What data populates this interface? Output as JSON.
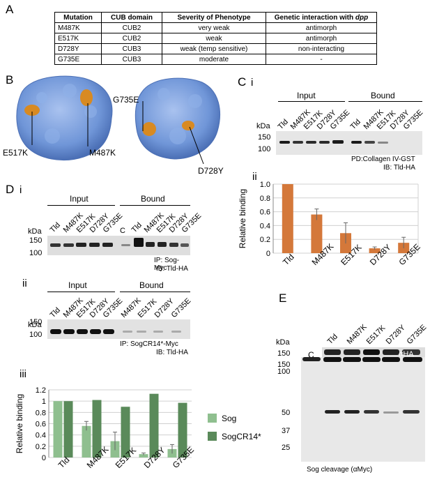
{
  "panels": {
    "A": "A",
    "B": "B",
    "C": "C",
    "C_i": "i",
    "C_ii": "ii",
    "D": "D",
    "D_i": "i",
    "D_ii": "ii",
    "D_iii": "iii",
    "E": "E"
  },
  "table": {
    "headers": [
      "Mutation",
      "CUB domain",
      "Severity of Phenotype",
      "Genetic interaction with "
    ],
    "header_italic": "dpp",
    "rows": [
      [
        "M487K",
        "CUB2",
        "very weak",
        "antimorph"
      ],
      [
        "E517K",
        "CUB2",
        "weak",
        "antimorph"
      ],
      [
        "D728Y",
        "CUB3",
        "weak (temp sensitive)",
        "non-interacting"
      ],
      [
        "G735E",
        "CUB3",
        "moderate",
        "-"
      ]
    ]
  },
  "structure_labels": {
    "e517k": "E517K",
    "m487k": "M487K",
    "g735e": "G735E",
    "d728y": "D728Y"
  },
  "blots": {
    "Ci": {
      "input": "Input",
      "bound": "Bound",
      "lanes": [
        "Tld",
        "M487K",
        "E517K",
        "D728Y",
        "G735E",
        "Tld",
        "M487K",
        "E517K",
        "D728Y",
        "G735E"
      ],
      "kda": "kDa",
      "markers": [
        "150",
        "100"
      ],
      "caption1": "PD:Collagen IV-GST",
      "caption2": "IB: Tld-HA"
    },
    "Di": {
      "input": "Input",
      "bound": "Bound",
      "lanes": [
        "Tld",
        "M487K",
        "E517K",
        "D728Y",
        "G735E",
        "C",
        "Tld",
        "M487K",
        "E517K",
        "D728Y",
        "G735E"
      ],
      "kda": "kDa",
      "markers": [
        "150",
        "100"
      ],
      "caption1": "IP: Sog-Myc",
      "caption2": "IB: Tld-HA"
    },
    "Dii": {
      "input": "Input",
      "bound": "Bound",
      "lanes": [
        "Tld",
        "M487K",
        "E517K",
        "D728Y",
        "G735E",
        "M487K",
        "E517K",
        "D728Y",
        "G735E"
      ],
      "kda": "kDa",
      "markers": [
        "150",
        "100"
      ],
      "caption1": "IP: SogCR14*-Myc",
      "caption2": "IB: Tld-HA"
    },
    "E": {
      "lanes": [
        "Tld",
        "M487K",
        "E517K",
        "D728Y",
        "G735E"
      ],
      "kda": "kDa",
      "markers": [
        "150",
        "150",
        "100",
        "50",
        "37",
        "25"
      ],
      "c_label": "C",
      "aha": "αHA",
      "caption": "Sog cleavage (αMyc)"
    }
  },
  "chart_data": [
    {
      "type": "bar",
      "panel": "C ii",
      "categories": [
        "Tld",
        "M487K",
        "E517K",
        "D728Y",
        "G735E"
      ],
      "values": [
        1.0,
        0.56,
        0.29,
        0.07,
        0.15
      ],
      "errors": [
        0,
        0.08,
        0.15,
        0.02,
        0.08
      ],
      "ylabel": "Relative binding",
      "ylim": [
        0,
        1.0
      ],
      "yticks": [
        "0",
        "0.2",
        "0.4",
        "0.6",
        "0.8",
        "1.0"
      ],
      "color": "#d4783a",
      "grid": true
    },
    {
      "type": "bar",
      "panel": "D iii",
      "categories": [
        "Tld",
        "M487K",
        "E517K",
        "D728Y",
        "G735E"
      ],
      "series": [
        {
          "name": "Sog",
          "values": [
            1.0,
            0.56,
            0.29,
            0.06,
            0.15
          ],
          "errors": [
            0,
            0.08,
            0.16,
            0.02,
            0.08
          ],
          "color": "#8fbf8f"
        },
        {
          "name": "SogCR14*",
          "values": [
            1.0,
            1.02,
            0.9,
            1.13,
            0.97
          ],
          "errors": [
            0,
            0,
            0,
            0,
            0
          ],
          "color": "#5a8a5a"
        }
      ],
      "ylabel": "Relative binding",
      "ylim": [
        0,
        1.2
      ],
      "yticks": [
        "0",
        "0.2",
        "0.4",
        "0.6",
        "0.8",
        "1",
        "1.2"
      ],
      "grid": true,
      "legend": "right"
    }
  ]
}
